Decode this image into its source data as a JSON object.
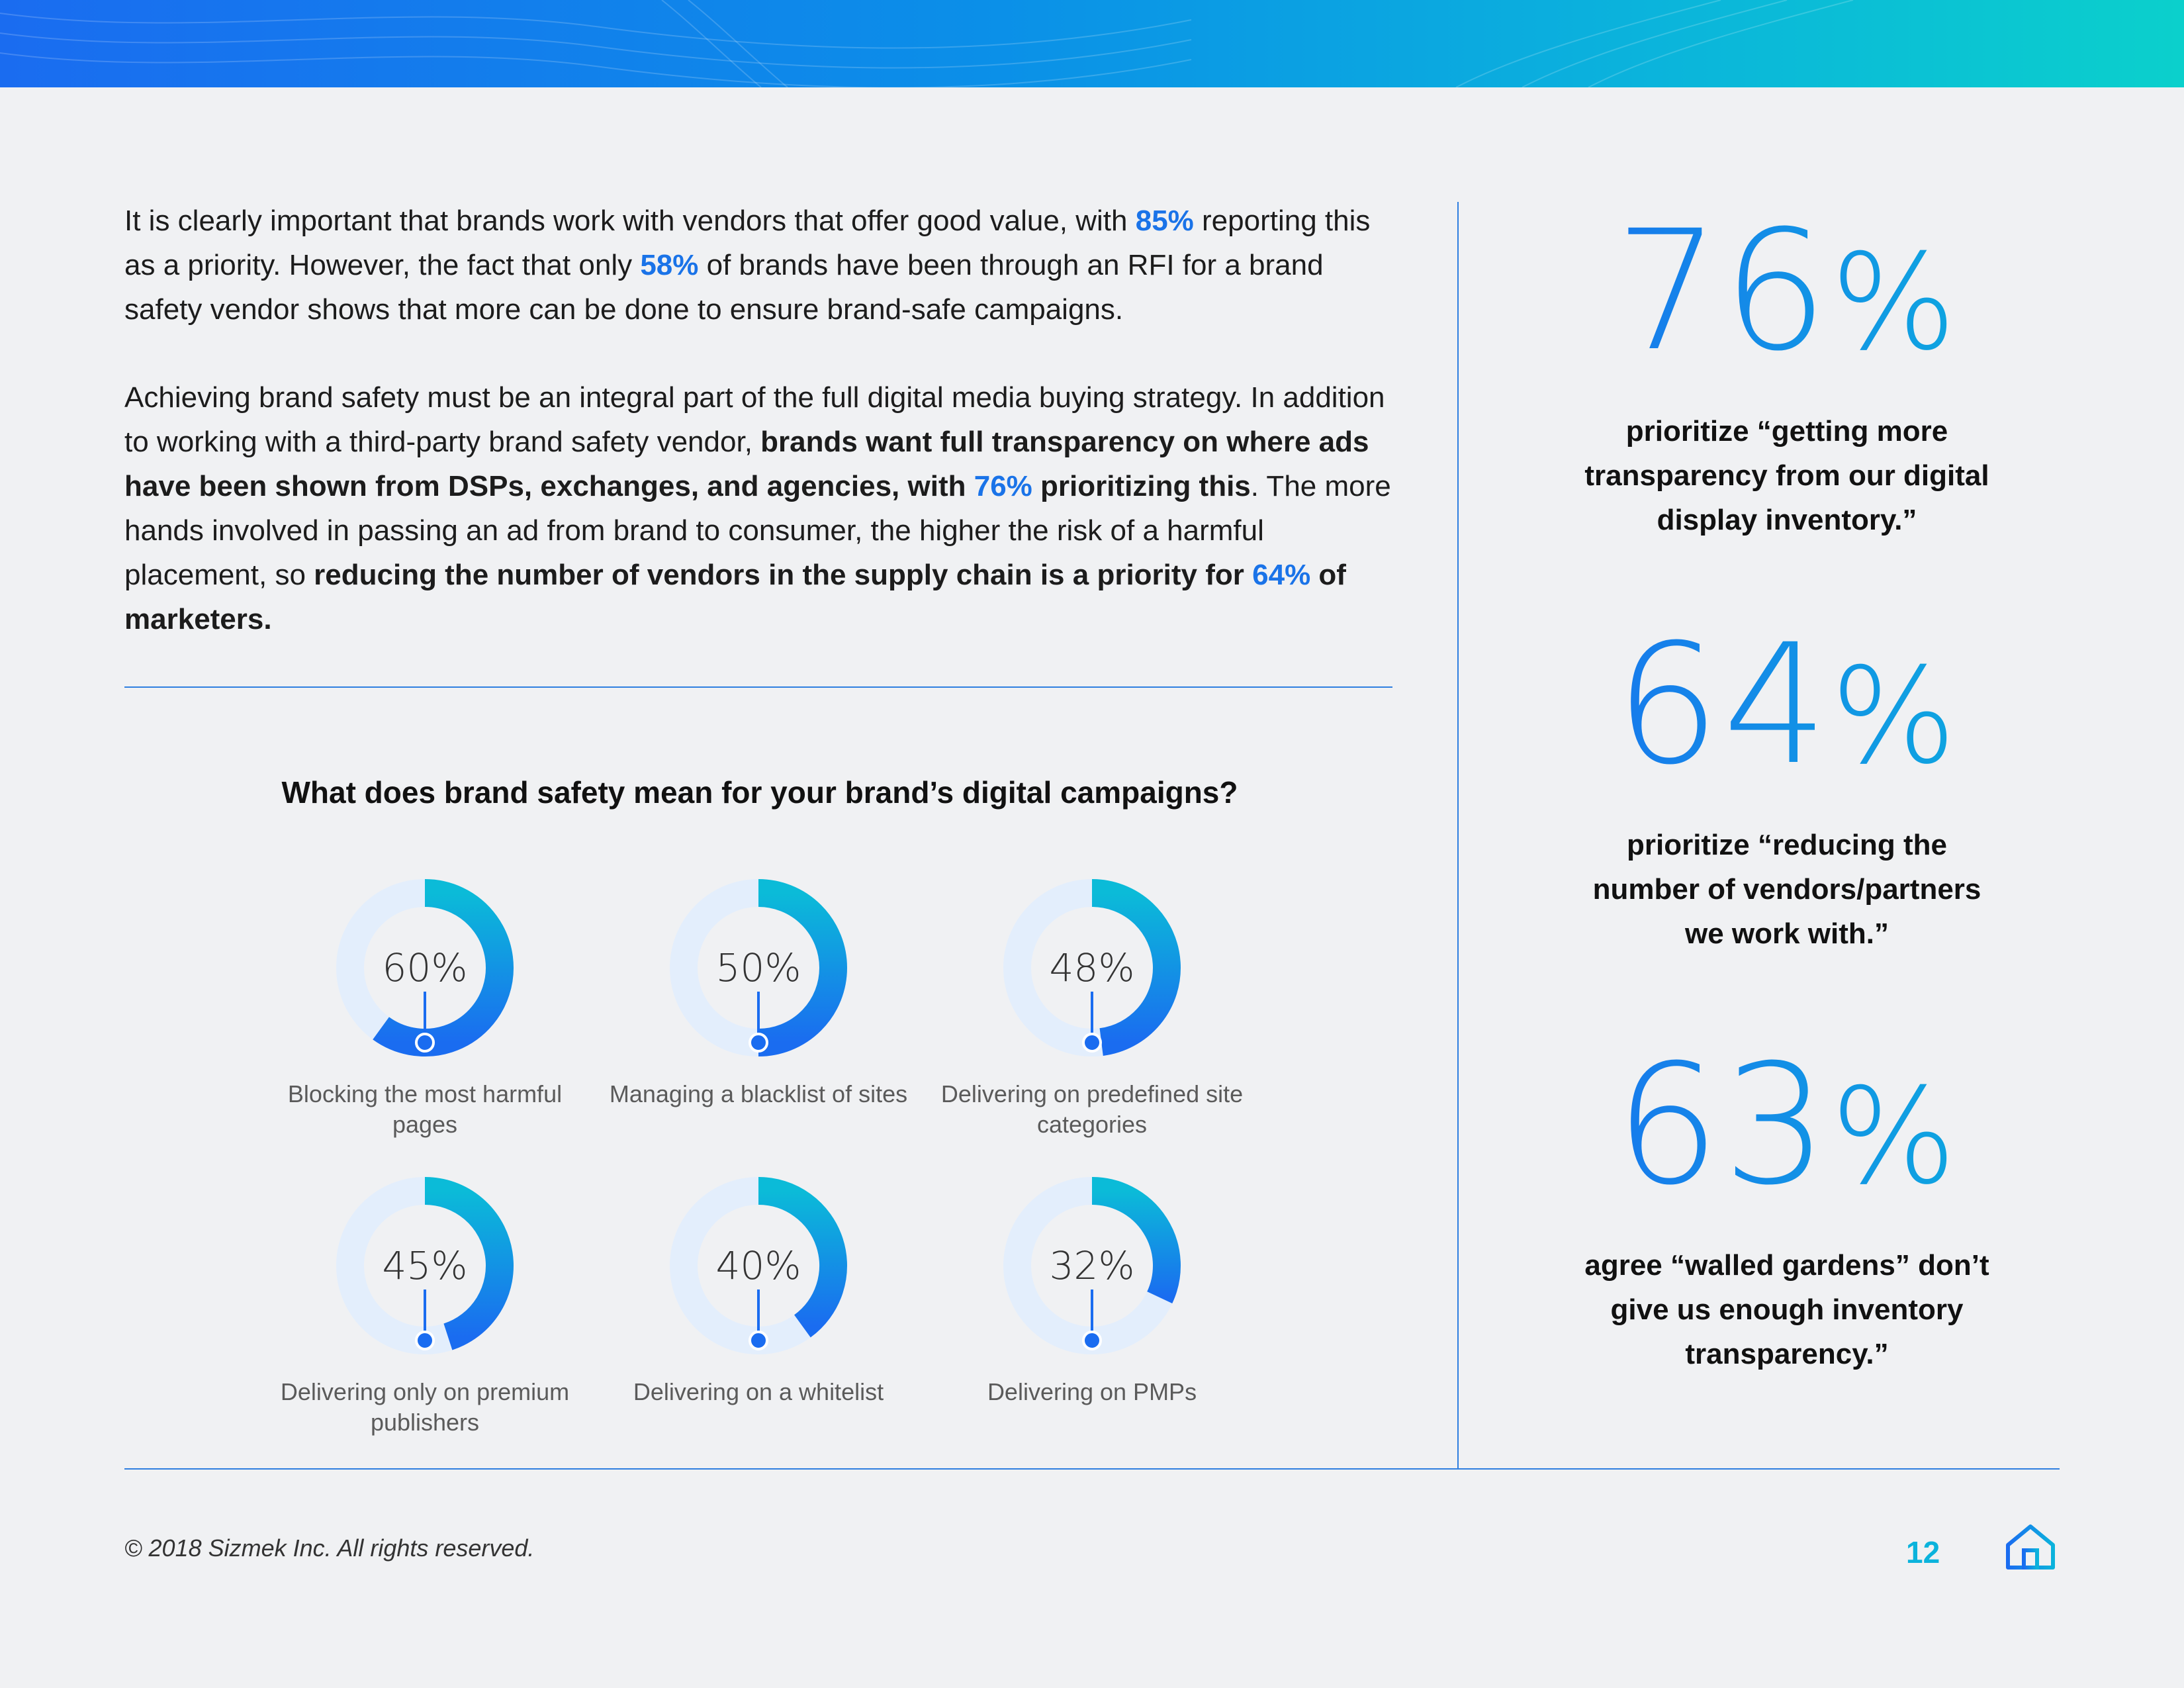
{
  "intro": {
    "p1_a": "It is clearly important that brands work with vendors that offer good value, with ",
    "p1_hl1": "85%",
    "p1_b": " reporting this as a priority. However, the fact that only ",
    "p1_hl2": "58%",
    "p1_c": " of brands have been through an RFI for a brand safety vendor shows that more can be done to ensure brand-safe campaigns.",
    "p2_a": "Achieving brand safety must be an integral part of the full digital media buying strategy. In addition to working with a third-party brand safety vendor, ",
    "p2_bold1": "brands want full transparency on where ads have been shown from DSPs, exchanges, and agencies, with ",
    "p2_hl1": "76%",
    "p2_bold2": " prioritizing this",
    "p2_b": ". The more hands involved in passing an ad from brand to consumer, the higher the risk of a harmful placement, so ",
    "p2_bold3": "reducing the number of vendors in the supply chain is a priority for ",
    "p2_hl2": "64%",
    "p2_bold4": " of marketers."
  },
  "chart_title": "What does brand safety mean for your brand’s digital campaigns?",
  "chart_data": {
    "type": "pie",
    "title": "What does brand safety mean for your brand’s digital campaigns?",
    "categories": [
      "Blocking the most harmful pages",
      "Managing a blacklist of sites",
      "Delivering on predefined site categories",
      "Delivering only on premium publishers",
      "Delivering on a whitelist",
      "Delivering on PMPs"
    ],
    "values": [
      60,
      50,
      48,
      45,
      40,
      32
    ],
    "unit": "%"
  },
  "donuts": [
    {
      "value_label": "60%",
      "label": "Blocking the most harmful pages"
    },
    {
      "value_label": "50%",
      "label": "Managing a blacklist of sites"
    },
    {
      "value_label": "48%",
      "label": "Delivering on predefined site categories"
    },
    {
      "value_label": "45%",
      "label": "Delivering only on premium publishers"
    },
    {
      "value_label": "40%",
      "label": "Delivering on a whitelist"
    },
    {
      "value_label": "32%",
      "label": "Delivering on PMPs"
    }
  ],
  "stats": [
    {
      "num": "76",
      "pct": "%",
      "text": "prioritize “getting more transparency from our digital display inventory.”"
    },
    {
      "num": "64",
      "pct": "%",
      "text": "prioritize “reducing the number of vendors/partners we work with.”"
    },
    {
      "num": "63",
      "pct": "%",
      "text": "agree “walled gardens” don’t give us enough inventory transparency.”"
    }
  ],
  "footer": {
    "copyright": "© 2018 Sizmek Inc. All rights reserved.",
    "page_number": "12"
  },
  "colors": {
    "accent_blue": "#1a73e8",
    "accent_teal": "#0bb3dc",
    "donut_track": "#e3eefc"
  }
}
